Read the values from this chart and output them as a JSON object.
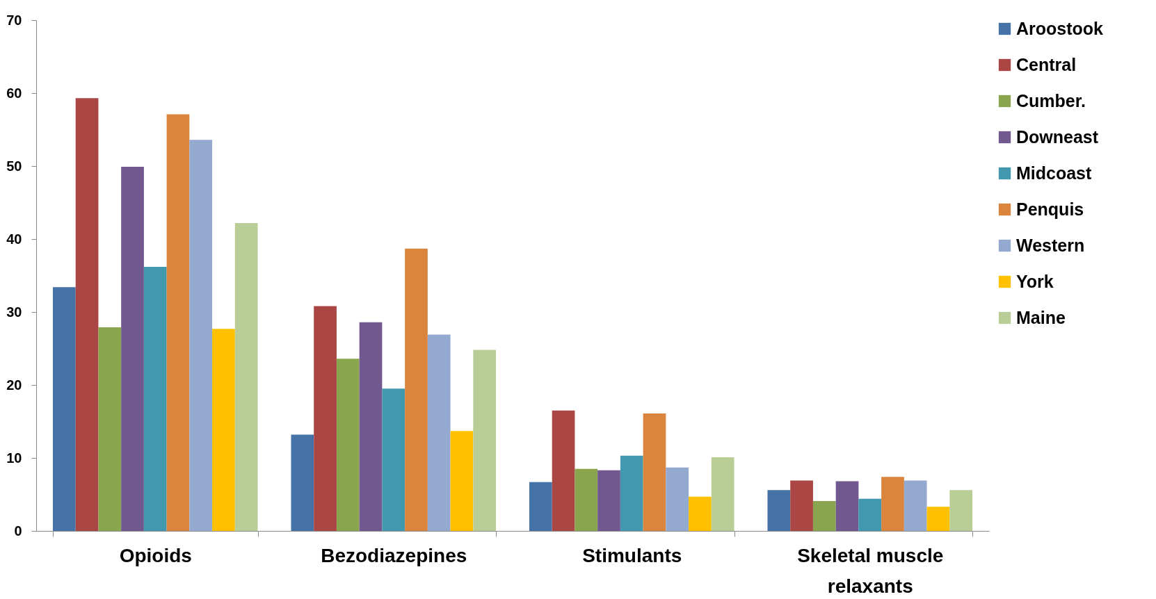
{
  "chart_data": {
    "type": "bar",
    "categories": [
      "Opioids",
      "Bezodiazepines",
      "Stimulants",
      "Skeletal muscle relaxants"
    ],
    "series": [
      {
        "name": "Aroostook",
        "color": "#4572a7",
        "values": [
          33.4,
          13.2,
          6.7,
          5.6
        ]
      },
      {
        "name": "Central",
        "color": "#aa4643",
        "values": [
          59.3,
          30.8,
          16.5,
          6.9
        ]
      },
      {
        "name": "Cumber.",
        "color": "#89a54e",
        "values": [
          27.9,
          23.6,
          8.5,
          4.1
        ]
      },
      {
        "name": "Downeast",
        "color": "#71588f",
        "values": [
          49.9,
          28.6,
          8.3,
          6.8
        ]
      },
      {
        "name": "Midcoast",
        "color": "#4198af",
        "values": [
          36.2,
          19.5,
          10.3,
          4.4
        ]
      },
      {
        "name": "Penquis",
        "color": "#db843d",
        "values": [
          57.1,
          38.7,
          16.1,
          7.4
        ]
      },
      {
        "name": "Western",
        "color": "#93a9cf",
        "values": [
          53.6,
          26.9,
          8.7,
          6.9
        ]
      },
      {
        "name": "York",
        "color": "#ffc000",
        "values": [
          27.7,
          13.7,
          4.7,
          3.3
        ]
      },
      {
        "name": "Maine",
        "color": "#b9cd96",
        "values": [
          42.2,
          24.8,
          10.1,
          5.6
        ]
      }
    ],
    "ylim": [
      0,
      70
    ],
    "yticks": [
      0,
      10,
      20,
      30,
      40,
      50,
      60,
      70
    ],
    "grid": false,
    "legend": "right"
  }
}
